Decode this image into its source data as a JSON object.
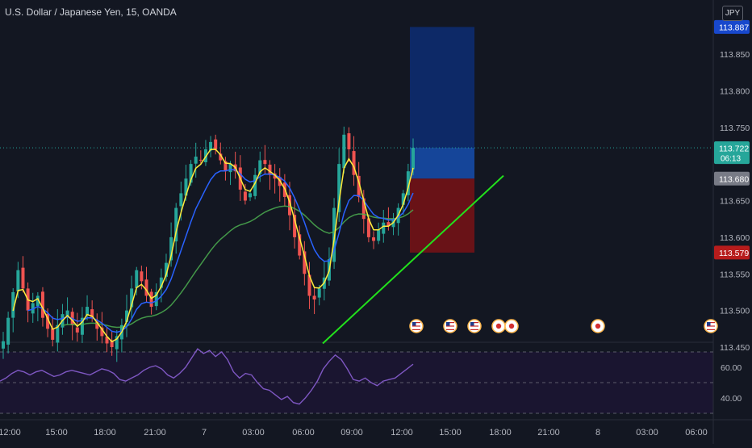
{
  "header": {
    "symbol_title": "U.S. Dollar / Japanese Yen, 15, OANDA",
    "currency_badge": "JPY"
  },
  "colors": {
    "background": "#131722",
    "up_candle": "#26a69a",
    "down_candle": "#ef5350",
    "ema_fast": "#ffeb3b",
    "ema_mid": "#2962ff",
    "ema_slow": "#4caf50",
    "trendline": "#22e01c",
    "target_zone": "#0d2a6b",
    "stop_zone": "#6e1217",
    "rsi_line": "#7e57c2",
    "rsi_band": "#1a1530"
  },
  "price_scale": {
    "ticks": [
      "113.850",
      "113.800",
      "113.750",
      "113.650",
      "113.600",
      "113.550",
      "113.500",
      "113.450"
    ],
    "labels": [
      {
        "text": "113.887",
        "value": 113.887,
        "bg": "#1848cc",
        "fg": "#ffffff",
        "kind": "target"
      },
      {
        "text": "113.722",
        "value": 113.722,
        "bg": "#26a69a",
        "fg": "#ffffff",
        "kind": "last",
        "sub": "06:13"
      },
      {
        "text": "113.680",
        "value": 113.68,
        "bg": "#787b86",
        "fg": "#ffffff",
        "kind": "entry"
      },
      {
        "text": "113.579",
        "value": 113.579,
        "bg": "#b71c1c",
        "fg": "#ffffff",
        "kind": "stop"
      }
    ]
  },
  "rsi_scale": {
    "ticks": [
      "60.00",
      "40.00"
    ]
  },
  "time_axis": {
    "labels": [
      "12:00",
      "15:00",
      "18:00",
      "21:00",
      "7",
      "03:00",
      "06:00",
      "09:00",
      "12:00",
      "15:00",
      "18:00",
      "21:00",
      "8",
      "03:00",
      "06:00"
    ]
  },
  "event_icons": [
    {
      "kind": "us-flag"
    },
    {
      "kind": "us-flag"
    },
    {
      "kind": "us-flag"
    },
    {
      "kind": "jp-flag"
    },
    {
      "kind": "jp-flag"
    },
    {
      "kind": "jp-flag"
    },
    {
      "kind": "us-flag"
    }
  ],
  "chart_data": {
    "type": "candlestick",
    "title": "U.S. Dollar / Japanese Yen, 15, OANDA",
    "interval": "15",
    "price_range": [
      113.42,
      113.93
    ],
    "last_price": 113.722,
    "candle_time_remaining": "06:13",
    "close_series": [
      113.458,
      113.49,
      113.525,
      113.555,
      113.53,
      113.5,
      113.51,
      113.52,
      113.49,
      113.475,
      113.46,
      113.48,
      113.495,
      113.5,
      113.48,
      113.47,
      113.49,
      113.505,
      113.49,
      113.475,
      113.465,
      113.455,
      113.45,
      113.465,
      113.48,
      113.5,
      113.53,
      113.555,
      113.54,
      113.52,
      113.505,
      113.525,
      113.545,
      113.565,
      113.6,
      113.64,
      113.66,
      113.68,
      113.7,
      113.71,
      113.705,
      113.72,
      113.73,
      113.72,
      113.705,
      113.69,
      113.7,
      113.69,
      113.665,
      113.65,
      113.66,
      113.685,
      113.705,
      113.7,
      113.685,
      113.68,
      113.67,
      113.655,
      113.63,
      113.6,
      113.575,
      113.55,
      113.52,
      113.515,
      113.53,
      113.545,
      113.57,
      113.64,
      113.7,
      113.74,
      113.72,
      113.685,
      113.655,
      113.625,
      113.6,
      113.595,
      113.61,
      113.62,
      113.615,
      113.625,
      113.64,
      113.66,
      113.69,
      113.722
    ],
    "overlays": [
      {
        "name": "EMA fast",
        "color": "#ffeb3b"
      },
      {
        "name": "EMA mid",
        "color": "#2962ff"
      },
      {
        "name": "EMA slow",
        "color": "#4caf50"
      }
    ],
    "position": {
      "type": "long",
      "entry": 113.68,
      "target": 113.887,
      "stop": 113.579,
      "last": 113.722
    },
    "trendline": {
      "from_price": 113.455,
      "to_price": 113.684
    },
    "rsi": {
      "levels": [
        70,
        50,
        30
      ],
      "values": [
        51,
        53,
        56,
        58,
        57,
        55,
        57,
        58,
        56,
        54,
        55,
        57,
        58,
        57,
        56,
        55,
        57,
        59,
        58,
        56,
        52,
        51,
        53,
        55,
        58,
        60,
        61,
        59,
        55,
        53,
        56,
        60,
        66,
        72,
        69,
        71,
        67,
        70,
        65,
        57,
        53,
        56,
        55,
        50,
        46,
        45,
        42,
        39,
        41,
        37,
        36,
        40,
        45,
        51,
        59,
        64,
        68,
        65,
        59,
        52,
        51,
        53,
        50,
        48,
        51,
        52,
        53,
        56,
        59,
        62
      ]
    }
  }
}
